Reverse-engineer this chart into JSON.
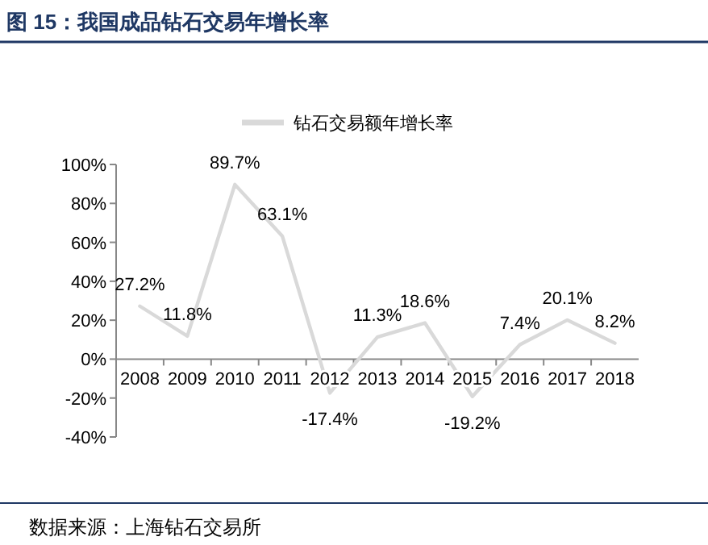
{
  "chart_data": {
    "type": "line",
    "title": "图 15：我国成品钻石交易年增长率",
    "categories": [
      "2008",
      "2009",
      "2010",
      "2011",
      "2012",
      "2013",
      "2014",
      "2015",
      "2016",
      "2017",
      "2018"
    ],
    "series": [
      {
        "name": "钻石交易额年增长率",
        "color": "#d9d9d9",
        "values": [
          27.2,
          11.8,
          89.7,
          63.1,
          -17.4,
          11.3,
          18.6,
          -19.2,
          7.4,
          20.1,
          8.2
        ],
        "value_labels": [
          "27.2%",
          "11.8%",
          "89.7%",
          "63.1%",
          "-17.4%",
          "11.3%",
          "18.6%",
          "-19.2%",
          "7.4%",
          "20.1%",
          "8.2%"
        ]
      }
    ],
    "ylim": [
      -40,
      100
    ],
    "yticks": [
      {
        "value": -40,
        "label": "-40%"
      },
      {
        "value": -20,
        "label": "-20%"
      },
      {
        "value": 0,
        "label": "0%"
      },
      {
        "value": 20,
        "label": "20%"
      },
      {
        "value": 40,
        "label": "40%"
      },
      {
        "value": 60,
        "label": "60%"
      },
      {
        "value": 80,
        "label": "80%"
      },
      {
        "value": 100,
        "label": "100%"
      }
    ],
    "legend": "top",
    "marker": "none",
    "line_style": "solid",
    "annotations": [
      "数据来源：上海钻石交易所"
    ]
  }
}
